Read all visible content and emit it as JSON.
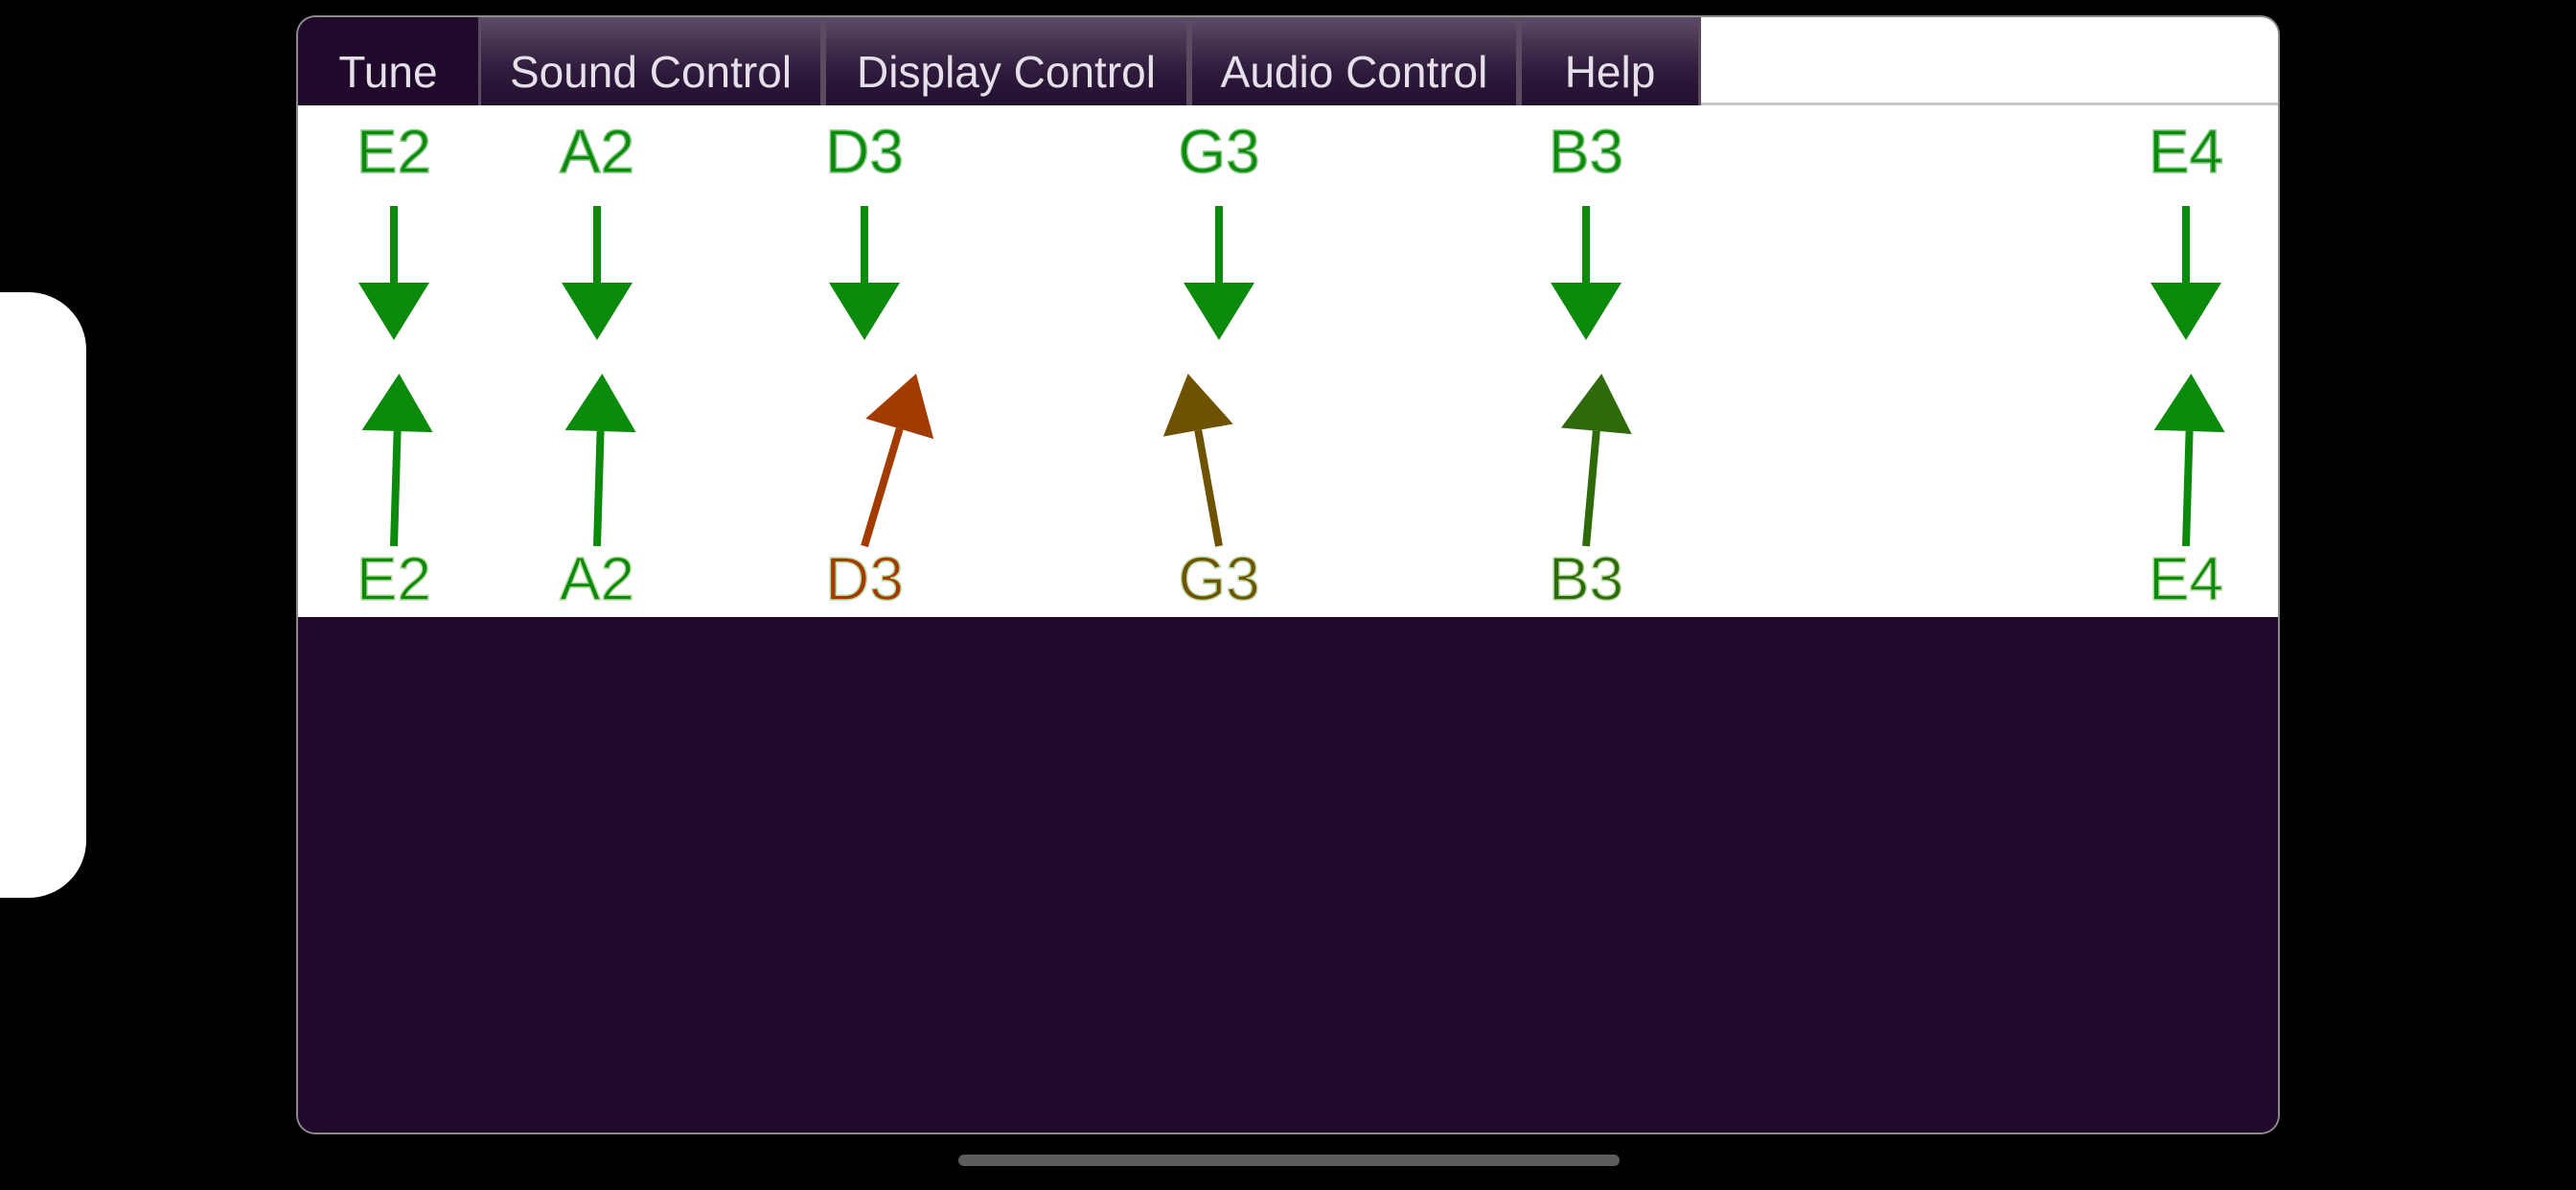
{
  "tabs": [
    {
      "label": "Tune",
      "active": true
    },
    {
      "label": "Sound Control",
      "active": false
    },
    {
      "label": "Display Control",
      "active": false
    },
    {
      "label": "Audio Control",
      "active": false
    },
    {
      "label": "Help",
      "active": false
    }
  ],
  "strings": [
    {
      "target": "E2",
      "detected": "E2",
      "deviation": 0.02,
      "color": "#0b8a0b",
      "detected_color": "#0b8a0b"
    },
    {
      "target": "A2",
      "detected": "A2",
      "deviation": 0.02,
      "color": "#0b8a0b",
      "detected_color": "#0b8a0b"
    },
    {
      "target": "D3",
      "detected": "D3",
      "deviation": 0.2,
      "color": "#0b8a0b",
      "detected_color": "#a33a00"
    },
    {
      "target": "G3",
      "detected": "G3",
      "deviation": -0.12,
      "color": "#0b8a0b",
      "detected_color": "#6e5200"
    },
    {
      "target": "B3",
      "detected": "B3",
      "deviation": 0.06,
      "color": "#0b8a0b",
      "detected_color": "#2f6a0a"
    },
    {
      "target": "E4",
      "detected": "E4",
      "deviation": 0.02,
      "color": "#0b8a0b",
      "detected_color": "#0b8a0b"
    }
  ],
  "colors": {
    "in_tune": "#0b8a0b",
    "sharp": "#a33a00",
    "flat": "#6e5200",
    "background_dark": "#21092b",
    "tuner_background": "#ffffff"
  }
}
